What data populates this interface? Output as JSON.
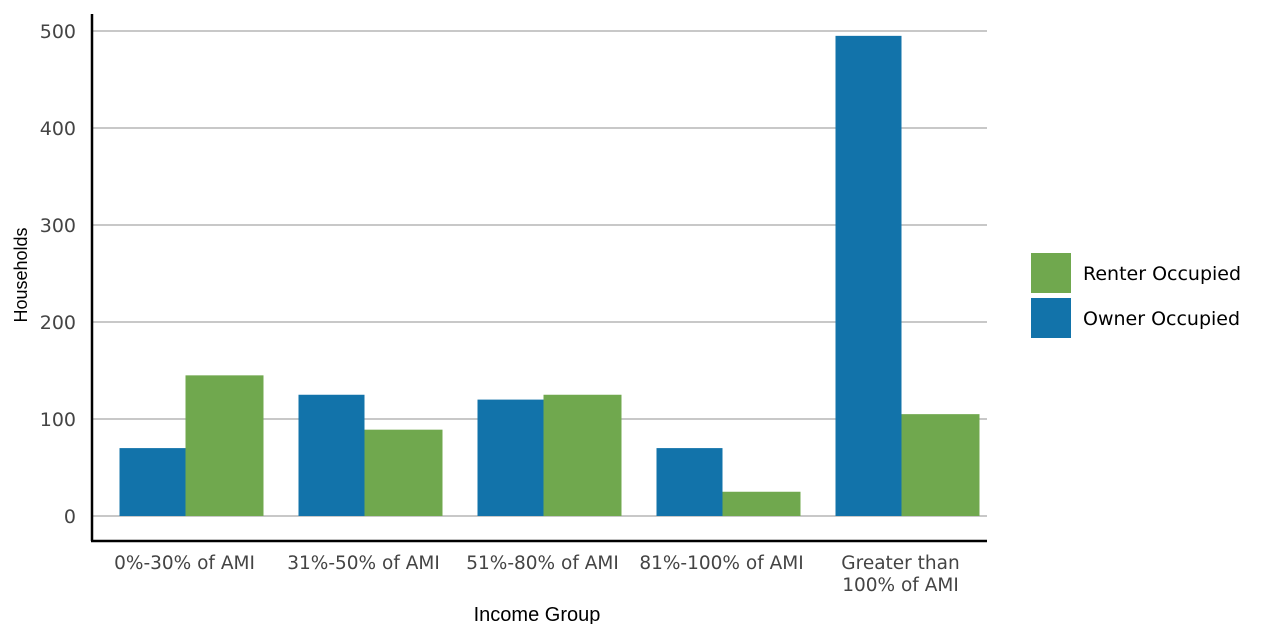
{
  "chart_data": {
    "type": "bar",
    "categories": [
      [
        "0%-30% of AMI"
      ],
      [
        "31%-50% of AMI"
      ],
      [
        "51%-80% of AMI"
      ],
      [
        "81%-100% of AMI"
      ],
      [
        "Greater than",
        "100% of AMI"
      ]
    ],
    "series": [
      {
        "name": "Owner Occupied",
        "color": "#1273aa",
        "values": [
          70,
          125,
          120,
          70,
          495
        ]
      },
      {
        "name": "Renter Occupied",
        "color": "#70a84e",
        "values": [
          145,
          89,
          125,
          25,
          105
        ]
      }
    ],
    "legend_order": [
      "Renter Occupied",
      "Owner Occupied"
    ],
    "legend_position": "right",
    "xlabel": "Income Group",
    "ylabel": "Households",
    "ylim": [
      0,
      500
    ],
    "yticks": [
      0,
      100,
      200,
      300,
      400,
      500
    ],
    "grid": true
  }
}
